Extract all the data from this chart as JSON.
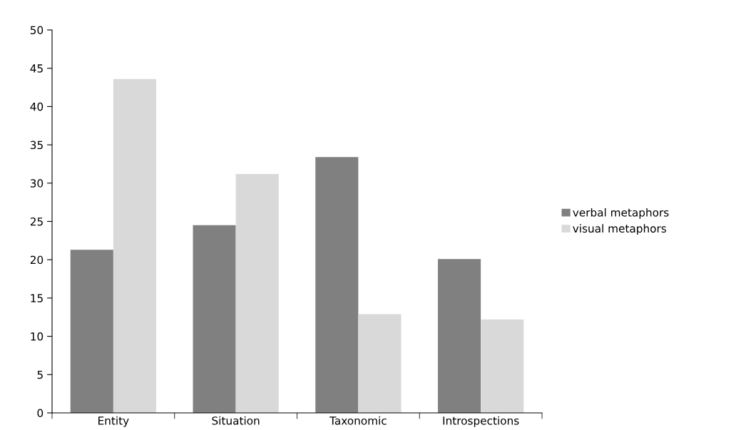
{
  "chart_data": {
    "type": "bar",
    "categories": [
      "Entity",
      "Situation",
      "Taxonomic",
      "Introspections"
    ],
    "series": [
      {
        "name": "verbal metaphors",
        "color": "#808080",
        "values": [
          21.3,
          24.5,
          33.4,
          20.1
        ]
      },
      {
        "name": "visual metaphors",
        "color": "#d9d9d9",
        "values": [
          43.6,
          31.2,
          12.9,
          12.2
        ]
      }
    ],
    "ylim": [
      0,
      50
    ],
    "yticks": [
      0,
      5,
      10,
      15,
      20,
      25,
      30,
      35,
      40,
      45,
      50
    ],
    "grid": false,
    "legend": "right"
  }
}
